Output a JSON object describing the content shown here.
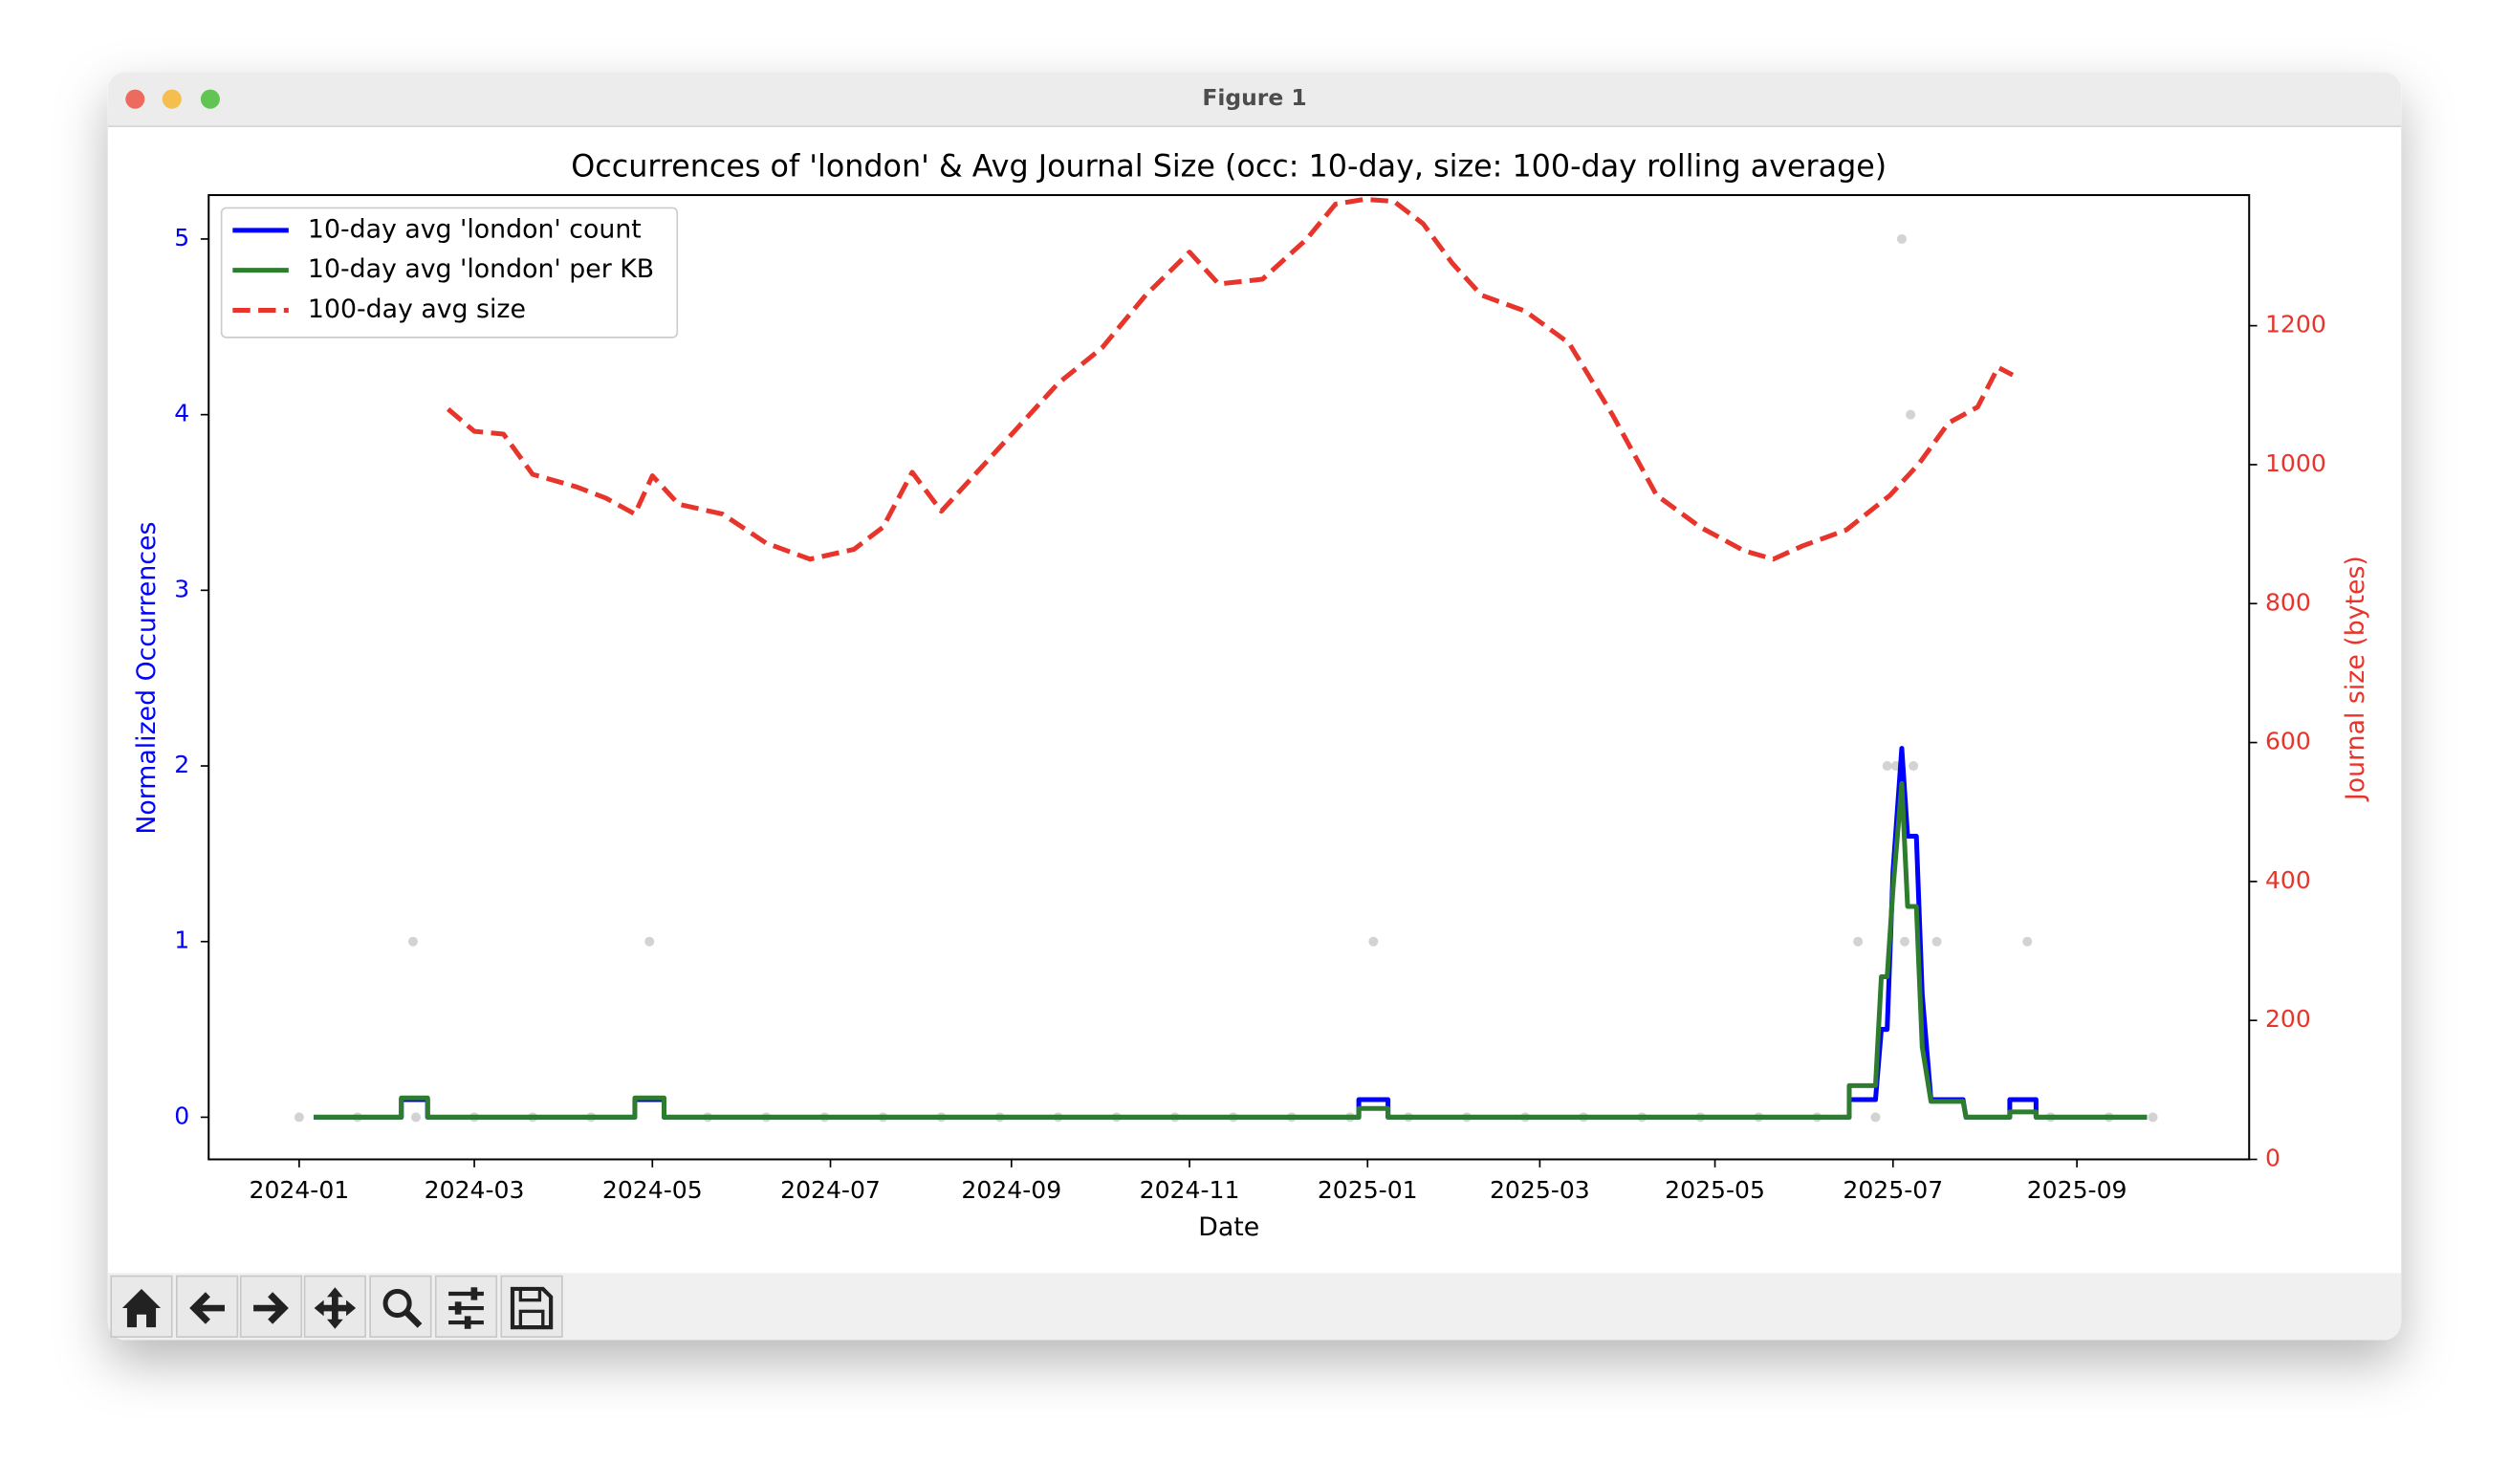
{
  "window_title": "Figure 1",
  "chart_data": {
    "type": "line",
    "title": "Occurrences of 'london' & Avg Journal Size (occ: 10-day, size: 100-day rolling average)",
    "xlabel": "Date",
    "ylabel": "Normalized Occurrences",
    "y2label": "Journal size (bytes)",
    "xlim": [
      -31,
      668
    ],
    "xticks": [
      {
        "value": 0,
        "label": "2024-01"
      },
      {
        "value": 60,
        "label": "2024-03"
      },
      {
        "value": 121,
        "label": "2024-05"
      },
      {
        "value": 182,
        "label": "2024-07"
      },
      {
        "value": 244,
        "label": "2024-09"
      },
      {
        "value": 305,
        "label": "2024-11"
      },
      {
        "value": 366,
        "label": "2025-01"
      },
      {
        "value": 425,
        "label": "2025-03"
      },
      {
        "value": 485,
        "label": "2025-05"
      },
      {
        "value": 546,
        "label": "2025-07"
      },
      {
        "value": 609,
        "label": "2025-09"
      }
    ],
    "ylim": [
      -0.24,
      5.25
    ],
    "yticks": [
      0,
      1,
      2,
      3,
      4,
      5
    ],
    "y2lim": [
      0,
      1388
    ],
    "y2ticks": [
      0,
      200,
      400,
      600,
      800,
      1000,
      1200
    ],
    "ycolor": "#0000ff",
    "y2color": "#e8352b",
    "legend": "upper left",
    "series": [
      {
        "mark": "dot",
        "color": "#d3d3d3",
        "x": [
          0,
          20,
          40,
          60,
          80,
          100,
          140,
          160,
          180,
          200,
          220,
          240,
          260,
          280,
          300,
          320,
          340,
          360,
          380,
          400,
          420,
          440,
          460,
          480,
          500,
          520,
          540,
          600,
          620,
          635,
          39,
          120,
          368,
          534,
          550,
          561,
          592,
          544,
          547,
          553,
          552,
          549
        ],
        "values": [
          0,
          0,
          0,
          0,
          0,
          0,
          0,
          0,
          0,
          0,
          0,
          0,
          0,
          0,
          0,
          0,
          0,
          0,
          0,
          0,
          0,
          0,
          0,
          0,
          0,
          0,
          0,
          0,
          0,
          0,
          1,
          1,
          1,
          1,
          1,
          1,
          1,
          2,
          2,
          2,
          4,
          5
        ]
      },
      {
        "mark": "line",
        "name": "10-day avg 'london' count",
        "color": "#0000ff",
        "x": [
          5,
          35,
          35,
          44,
          44,
          115,
          115,
          125,
          125,
          363,
          363,
          373,
          373,
          531,
          531,
          540,
          542,
          544,
          546,
          549,
          551,
          554,
          556,
          559,
          570,
          571,
          586,
          586,
          595,
          595,
          633
        ],
        "values": [
          0,
          0,
          0.1,
          0.1,
          0,
          0,
          0.1,
          0.1,
          0,
          0,
          0.1,
          0.1,
          0,
          0,
          0.1,
          0.1,
          0.5,
          0.5,
          1.4,
          2.1,
          1.6,
          1.6,
          0.7,
          0.1,
          0.1,
          0,
          0,
          0.1,
          0.1,
          0,
          0
        ]
      },
      {
        "mark": "line",
        "name": "10-day avg 'london' per KB",
        "color": "#2e7d2e",
        "x": [
          5,
          35,
          35,
          44,
          44,
          115,
          115,
          125,
          125,
          363,
          363,
          373,
          373,
          531,
          531,
          540,
          542,
          544,
          546,
          549,
          551,
          554,
          556,
          559,
          570,
          571,
          586,
          586,
          595,
          595,
          633
        ],
        "values": [
          0,
          0,
          0.11,
          0.11,
          0,
          0,
          0.11,
          0.11,
          0,
          0,
          0.05,
          0.05,
          0,
          0,
          0.18,
          0.18,
          0.8,
          0.8,
          1.3,
          1.9,
          1.2,
          1.2,
          0.4,
          0.09,
          0.09,
          0,
          0,
          0.03,
          0.03,
          0,
          0
        ]
      },
      {
        "mark": "line",
        "dashed": true,
        "axis": "y2",
        "name": "100-day avg size",
        "color": "#e8352b",
        "x": [
          51,
          60,
          70,
          80,
          95,
          105,
          115,
          121,
          130,
          145,
          160,
          175,
          190,
          200,
          210,
          220,
          230,
          245,
          260,
          275,
          290,
          305,
          315,
          330,
          345,
          355,
          365,
          375,
          385,
          395,
          405,
          420,
          435,
          450,
          465,
          480,
          495,
          505,
          515,
          530,
          545,
          555,
          565,
          575,
          582,
          587
        ],
        "values": [
          1080,
          1048,
          1044,
          986,
          968,
          952,
          929,
          984,
          943,
          929,
          887,
          864,
          878,
          910,
          989,
          933,
          979,
          1048,
          1117,
          1168,
          1244,
          1306,
          1260,
          1267,
          1324,
          1375,
          1382,
          1379,
          1347,
          1290,
          1244,
          1221,
          1175,
          1071,
          956,
          910,
          876,
          864,
          883,
          906,
          956,
          1002,
          1060,
          1083,
          1140,
          1129
        ]
      }
    ]
  }
}
